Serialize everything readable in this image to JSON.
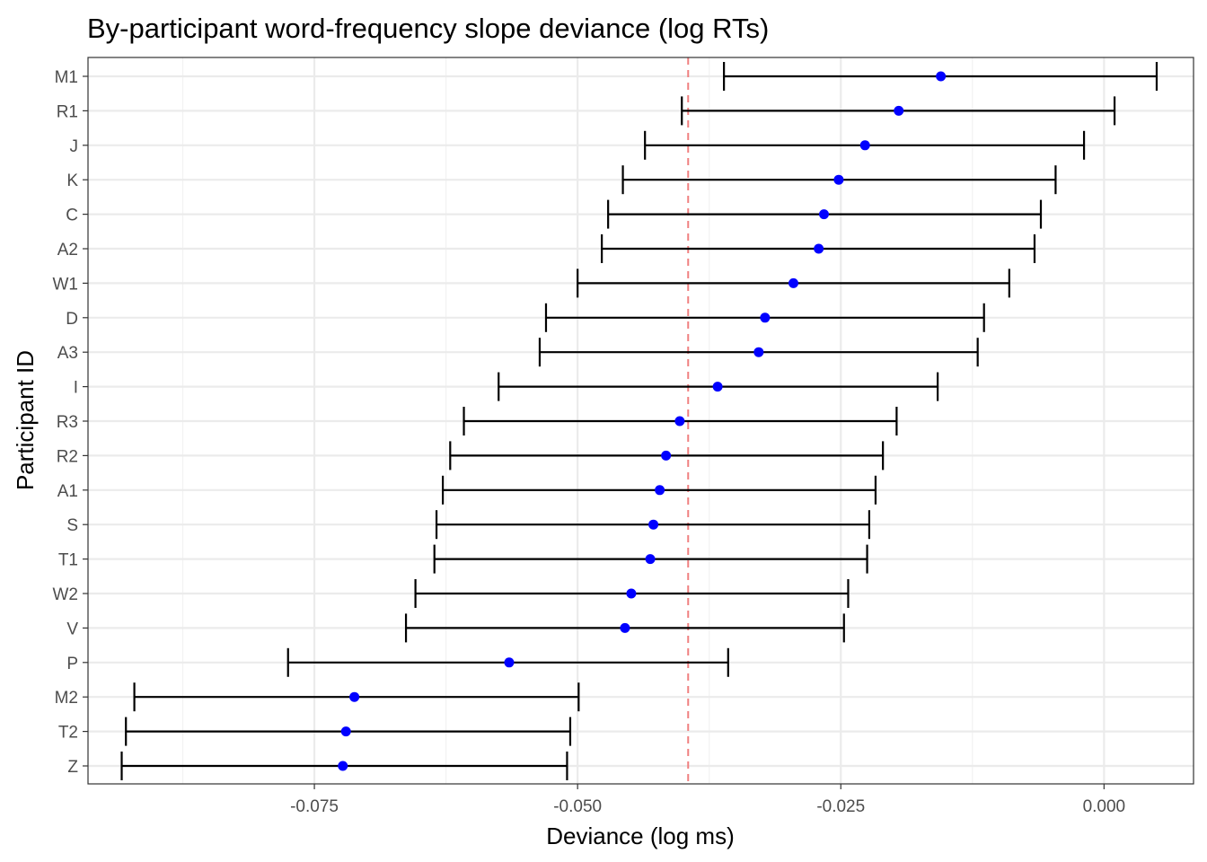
{
  "chart_data": {
    "type": "scatter",
    "subtype": "point-with-errorbars",
    "title": "By-participant word-frequency slope deviance (log RTs)",
    "xlabel": "Deviance (log ms)",
    "ylabel": "Participant ID",
    "xlim": [
      -0.0965,
      0.0085
    ],
    "x_ticks": [
      -0.075,
      -0.05,
      -0.025,
      0.0
    ],
    "x_tick_labels": [
      "-0.075",
      "-0.050",
      "-0.025",
      "0.000"
    ],
    "reference_line": {
      "x": -0.0395,
      "style": "dashed",
      "color": "#f08080"
    },
    "point_color": "#0000ff",
    "errorbar_color": "#000000",
    "grid": true,
    "theme": "bw",
    "participants": [
      {
        "id": "M1",
        "estimate": -0.0155,
        "lower": -0.0361,
        "upper": 0.005
      },
      {
        "id": "R1",
        "estimate": -0.0195,
        "lower": -0.0401,
        "upper": 0.001
      },
      {
        "id": "J",
        "estimate": -0.0227,
        "lower": -0.0436,
        "upper": -0.0019
      },
      {
        "id": "K",
        "estimate": -0.0252,
        "lower": -0.0457,
        "upper": -0.0046
      },
      {
        "id": "C",
        "estimate": -0.0266,
        "lower": -0.0471,
        "upper": -0.006
      },
      {
        "id": "A2",
        "estimate": -0.0271,
        "lower": -0.0477,
        "upper": -0.0066
      },
      {
        "id": "W1",
        "estimate": -0.0295,
        "lower": -0.05,
        "upper": -0.009
      },
      {
        "id": "D",
        "estimate": -0.0322,
        "lower": -0.053,
        "upper": -0.0114
      },
      {
        "id": "A3",
        "estimate": -0.0328,
        "lower": -0.0536,
        "upper": -0.012
      },
      {
        "id": "I",
        "estimate": -0.0367,
        "lower": -0.0575,
        "upper": -0.0158
      },
      {
        "id": "R3",
        "estimate": -0.0403,
        "lower": -0.0608,
        "upper": -0.0197
      },
      {
        "id": "R2",
        "estimate": -0.0416,
        "lower": -0.0621,
        "upper": -0.021
      },
      {
        "id": "A1",
        "estimate": -0.0422,
        "lower": -0.0628,
        "upper": -0.0217
      },
      {
        "id": "S",
        "estimate": -0.0428,
        "lower": -0.0634,
        "upper": -0.0223
      },
      {
        "id": "T1",
        "estimate": -0.0431,
        "lower": -0.0636,
        "upper": -0.0225
      },
      {
        "id": "W2",
        "estimate": -0.0449,
        "lower": -0.0654,
        "upper": -0.0243
      },
      {
        "id": "V",
        "estimate": -0.0455,
        "lower": -0.0663,
        "upper": -0.0247
      },
      {
        "id": "P",
        "estimate": -0.0565,
        "lower": -0.0775,
        "upper": -0.0357
      },
      {
        "id": "M2",
        "estimate": -0.0712,
        "lower": -0.0921,
        "upper": -0.0499
      },
      {
        "id": "T2",
        "estimate": -0.072,
        "lower": -0.0929,
        "upper": -0.0507
      },
      {
        "id": "Z",
        "estimate": -0.0723,
        "lower": -0.0933,
        "upper": -0.051
      }
    ]
  }
}
